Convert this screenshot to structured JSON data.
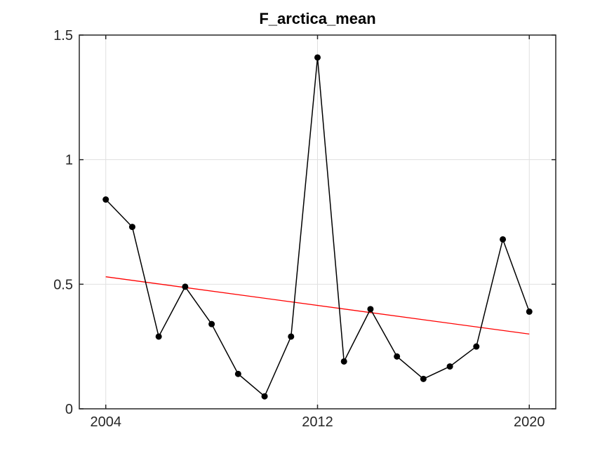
{
  "figure": {
    "background_color": "#ffffff"
  },
  "chart_data": {
    "type": "line",
    "title": "F_arctica_mean",
    "xlabel": "",
    "ylabel": "",
    "x": [
      2004,
      2005,
      2006,
      2007,
      2008,
      2009,
      2010,
      2011,
      2012,
      2013,
      2014,
      2015,
      2016,
      2017,
      2018,
      2019,
      2020
    ],
    "series": [
      {
        "name": "F_arctica_mean",
        "color": "#000000",
        "marker": "filled-circle",
        "marker_size": 4.5,
        "values": [
          0.84,
          0.73,
          0.29,
          0.49,
          0.34,
          0.14,
          0.05,
          0.29,
          1.41,
          0.19,
          0.4,
          0.21,
          0.12,
          0.17,
          0.25,
          0.68,
          0.39
        ]
      }
    ],
    "trend_line": {
      "name": "linear-trend",
      "color": "#ff0000",
      "x": [
        2004,
        2020
      ],
      "y": [
        0.53,
        0.3
      ]
    },
    "xlim": [
      2003,
      2021
    ],
    "ylim": [
      0,
      1.5
    ],
    "xticks": [
      2004,
      2012,
      2020
    ],
    "xtick_labels": [
      "2004",
      "2012",
      "2020"
    ],
    "yticks": [
      0,
      0.5,
      1,
      1.5
    ],
    "ytick_labels": [
      "0",
      "0.5",
      "1",
      "1.5"
    ],
    "grid": true,
    "legend_position": "none",
    "colors": {
      "grid_color": "#e0e0e0",
      "axis_color": "#262626",
      "tick_label_color": "#262626",
      "title_color": "#000000",
      "data_line_color": "#000000",
      "trend_line_color": "#ff0000"
    }
  }
}
